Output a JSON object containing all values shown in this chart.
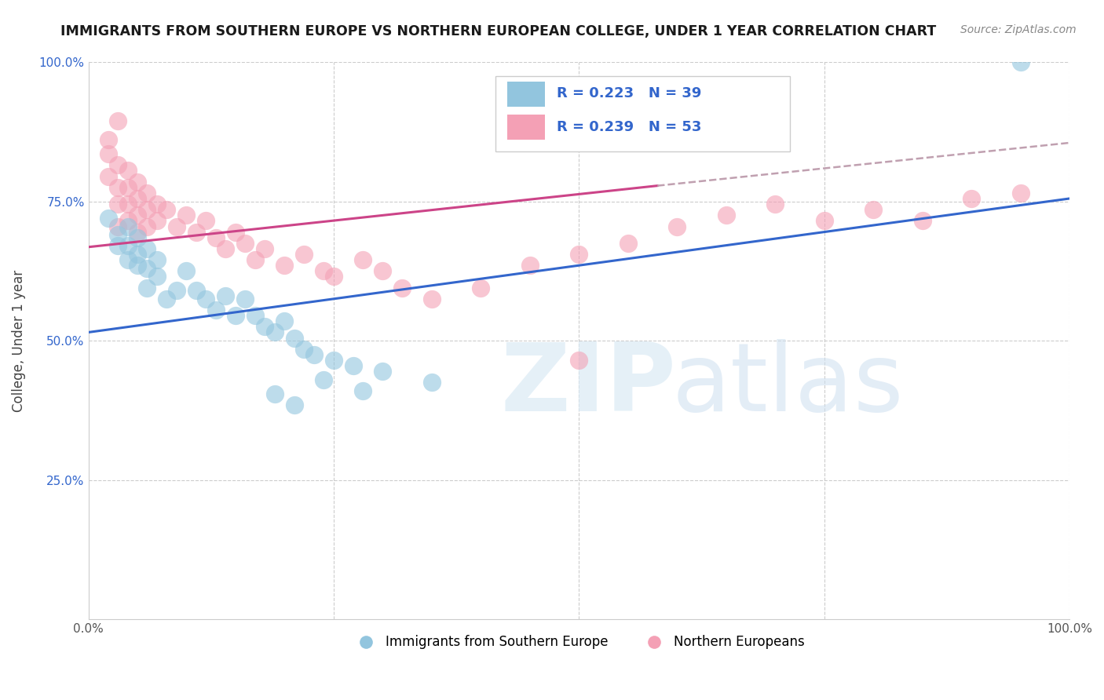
{
  "title": "IMMIGRANTS FROM SOUTHERN EUROPE VS NORTHERN EUROPEAN COLLEGE, UNDER 1 YEAR CORRELATION CHART",
  "source": "Source: ZipAtlas.com",
  "ylabel": "College, Under 1 year",
  "xlim": [
    0,
    1
  ],
  "ylim": [
    0,
    1
  ],
  "legend_label_blue": "Immigrants from Southern Europe",
  "legend_label_pink": "Northern Europeans",
  "blue_color": "#92c5de",
  "pink_color": "#f4a0b5",
  "line_blue": "#3366cc",
  "line_pink": "#cc4488",
  "line_dashed_color": "#c0a0b0",
  "blue_line_x": [
    0.0,
    1.0
  ],
  "blue_line_y": [
    0.515,
    0.755
  ],
  "pink_line_x": [
    0.0,
    0.58
  ],
  "pink_line_y": [
    0.668,
    0.778
  ],
  "dash_line_x": [
    0.58,
    1.0
  ],
  "dash_line_y": [
    0.778,
    0.855
  ],
  "blue_scatter": [
    [
      0.02,
      0.72
    ],
    [
      0.03,
      0.69
    ],
    [
      0.03,
      0.67
    ],
    [
      0.04,
      0.705
    ],
    [
      0.04,
      0.67
    ],
    [
      0.04,
      0.645
    ],
    [
      0.05,
      0.685
    ],
    [
      0.05,
      0.655
    ],
    [
      0.05,
      0.635
    ],
    [
      0.06,
      0.665
    ],
    [
      0.06,
      0.63
    ],
    [
      0.06,
      0.595
    ],
    [
      0.07,
      0.645
    ],
    [
      0.07,
      0.615
    ],
    [
      0.08,
      0.575
    ],
    [
      0.09,
      0.59
    ],
    [
      0.1,
      0.625
    ],
    [
      0.11,
      0.59
    ],
    [
      0.12,
      0.575
    ],
    [
      0.13,
      0.555
    ],
    [
      0.14,
      0.58
    ],
    [
      0.15,
      0.545
    ],
    [
      0.16,
      0.575
    ],
    [
      0.17,
      0.545
    ],
    [
      0.18,
      0.525
    ],
    [
      0.19,
      0.515
    ],
    [
      0.2,
      0.535
    ],
    [
      0.21,
      0.505
    ],
    [
      0.22,
      0.485
    ],
    [
      0.23,
      0.475
    ],
    [
      0.25,
      0.465
    ],
    [
      0.27,
      0.455
    ],
    [
      0.3,
      0.445
    ],
    [
      0.35,
      0.425
    ],
    [
      0.19,
      0.405
    ],
    [
      0.21,
      0.385
    ],
    [
      0.24,
      0.43
    ],
    [
      0.28,
      0.41
    ],
    [
      0.95,
      1.0
    ]
  ],
  "pink_scatter": [
    [
      0.02,
      0.795
    ],
    [
      0.02,
      0.835
    ],
    [
      0.02,
      0.86
    ],
    [
      0.03,
      0.815
    ],
    [
      0.03,
      0.775
    ],
    [
      0.03,
      0.745
    ],
    [
      0.03,
      0.705
    ],
    [
      0.04,
      0.805
    ],
    [
      0.04,
      0.775
    ],
    [
      0.04,
      0.745
    ],
    [
      0.04,
      0.715
    ],
    [
      0.05,
      0.785
    ],
    [
      0.05,
      0.755
    ],
    [
      0.05,
      0.725
    ],
    [
      0.05,
      0.695
    ],
    [
      0.06,
      0.765
    ],
    [
      0.06,
      0.735
    ],
    [
      0.06,
      0.705
    ],
    [
      0.07,
      0.745
    ],
    [
      0.07,
      0.715
    ],
    [
      0.08,
      0.735
    ],
    [
      0.09,
      0.705
    ],
    [
      0.1,
      0.725
    ],
    [
      0.11,
      0.695
    ],
    [
      0.12,
      0.715
    ],
    [
      0.13,
      0.685
    ],
    [
      0.14,
      0.665
    ],
    [
      0.15,
      0.695
    ],
    [
      0.16,
      0.675
    ],
    [
      0.17,
      0.645
    ],
    [
      0.18,
      0.665
    ],
    [
      0.2,
      0.635
    ],
    [
      0.22,
      0.655
    ],
    [
      0.24,
      0.625
    ],
    [
      0.25,
      0.615
    ],
    [
      0.28,
      0.645
    ],
    [
      0.3,
      0.625
    ],
    [
      0.32,
      0.595
    ],
    [
      0.35,
      0.575
    ],
    [
      0.4,
      0.595
    ],
    [
      0.45,
      0.635
    ],
    [
      0.5,
      0.465
    ],
    [
      0.5,
      0.655
    ],
    [
      0.55,
      0.675
    ],
    [
      0.6,
      0.705
    ],
    [
      0.65,
      0.725
    ],
    [
      0.7,
      0.745
    ],
    [
      0.75,
      0.715
    ],
    [
      0.8,
      0.735
    ],
    [
      0.85,
      0.715
    ],
    [
      0.9,
      0.755
    ],
    [
      0.95,
      0.765
    ],
    [
      0.03,
      0.895
    ]
  ]
}
